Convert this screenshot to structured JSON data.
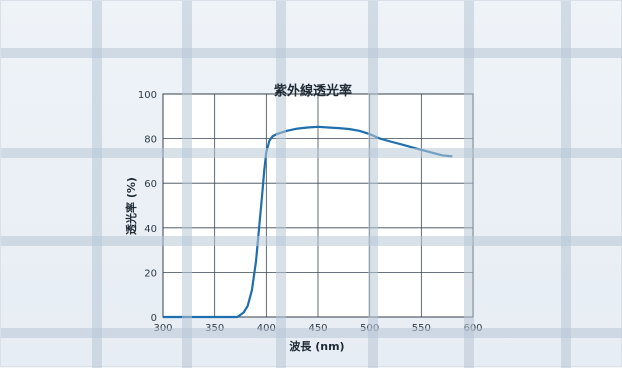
{
  "chart_data": {
    "type": "line",
    "title": "紫外線透光率",
    "xlabel": "波長 (nm)",
    "ylabel": "透光率 (%)",
    "xlim": [
      300,
      600
    ],
    "ylim": [
      0,
      100
    ],
    "x_ticks": [
      300,
      350,
      400,
      450,
      500,
      550,
      600
    ],
    "y_ticks": [
      0,
      20,
      40,
      60,
      80,
      100
    ],
    "grid": true,
    "series": [
      {
        "color": "#1f6fae",
        "x": [
          300,
          360,
          372,
          378,
          382,
          386,
          390,
          393,
          396,
          398,
          400,
          403,
          406,
          410,
          420,
          430,
          440,
          450,
          460,
          470,
          480,
          490,
          500,
          510,
          520,
          530,
          540,
          550,
          560,
          570,
          580
        ],
        "y": [
          0,
          0,
          0,
          2,
          5,
          12,
          25,
          40,
          55,
          66,
          74,
          79,
          81,
          82,
          83.5,
          84.5,
          85,
          85.3,
          85,
          84.7,
          84.3,
          83.5,
          82,
          80,
          78.7,
          77.5,
          76.2,
          75,
          73.7,
          72.5,
          72
        ]
      }
    ]
  },
  "mesh": {
    "vertical_count": 7,
    "horizontal_count": 7,
    "color": "#b8c6d6"
  }
}
